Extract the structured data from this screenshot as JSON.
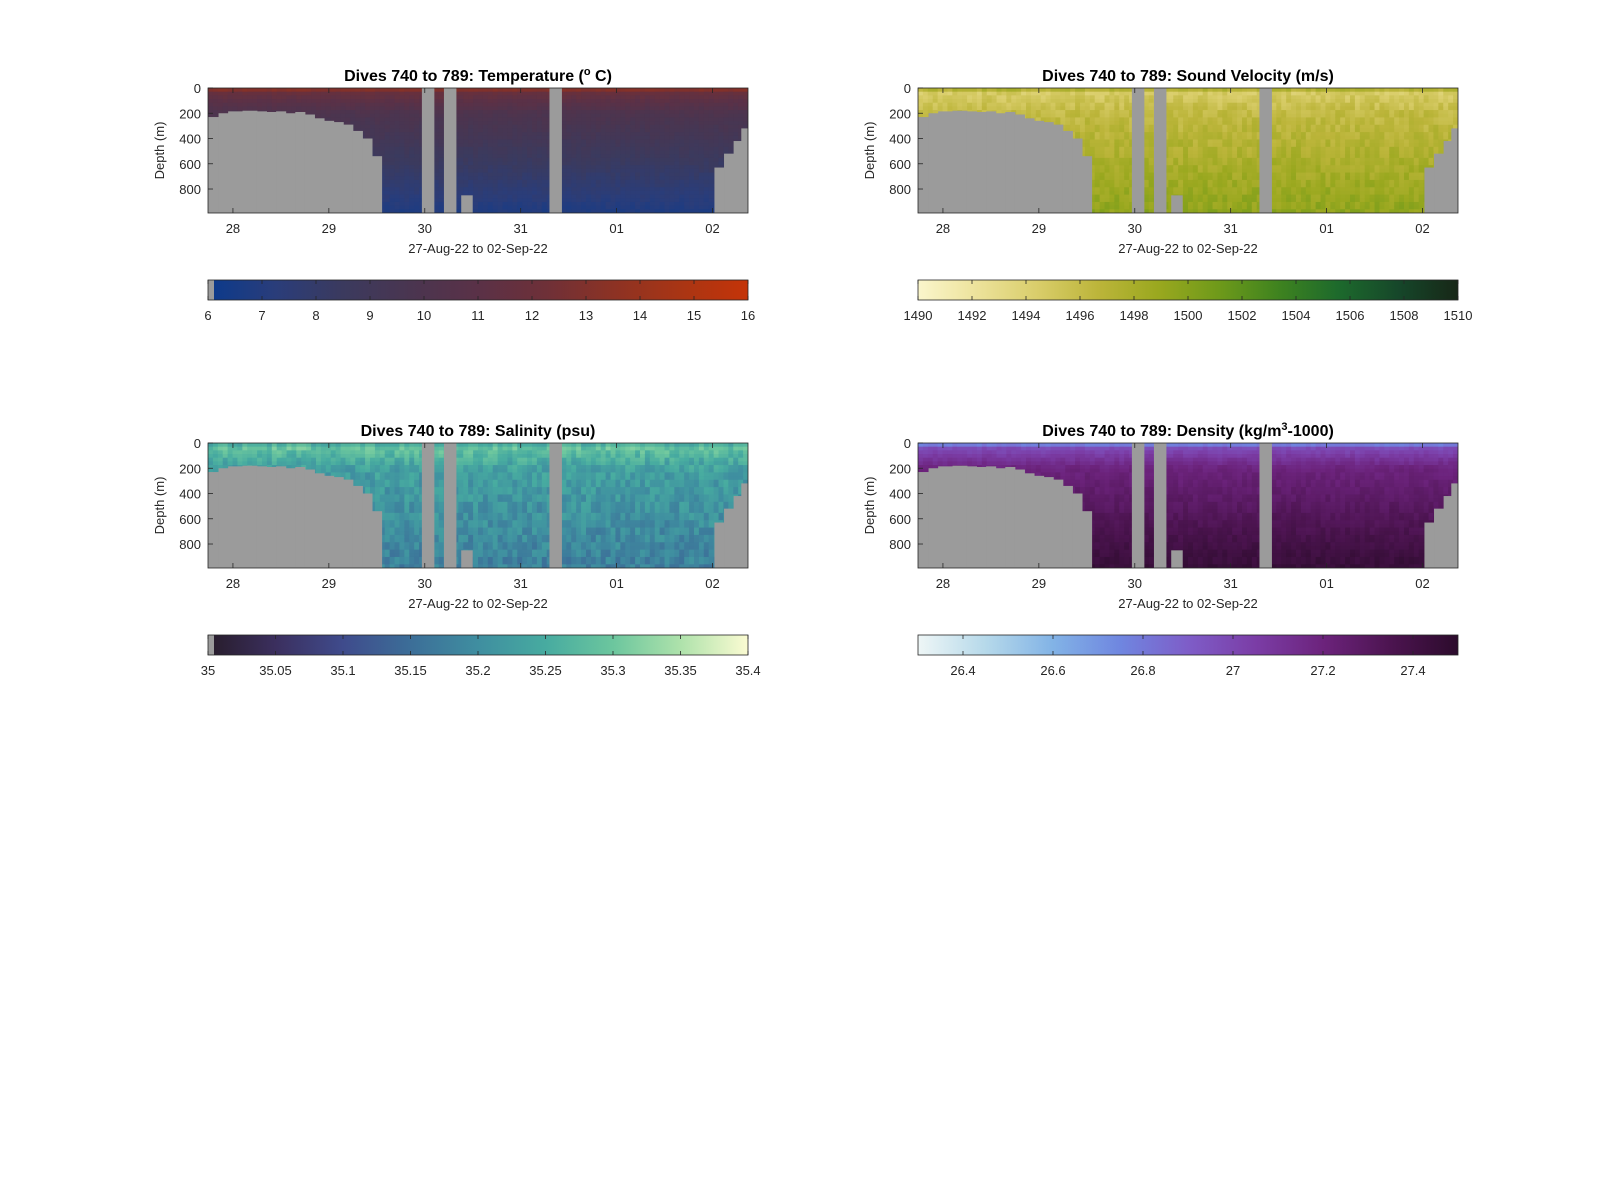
{
  "figure": {
    "background": "#ffffff",
    "axis_color": "#262626",
    "mask_color": "#9b9b9b"
  },
  "chart_data": [
    {
      "id": "temperature",
      "type": "heatmap",
      "title_parts": [
        {
          "t": "Dives 740 to 789: Temperature ("
        },
        {
          "t": "o",
          "sup": true
        },
        {
          "t": " C)"
        }
      ],
      "ylabel": "Depth (m)",
      "xlabel": "27-Aug-22 to 02-Sep-22",
      "x_tick_labels": [
        "28",
        "29",
        "30",
        "31",
        "01",
        "02"
      ],
      "x_tick_values": [
        1,
        2,
        3,
        4,
        5,
        6
      ],
      "xlim": [
        0.74,
        6.37
      ],
      "y_tick_labels": [
        "0",
        "200",
        "400",
        "600",
        "800"
      ],
      "y_tick_values": [
        0,
        200,
        400,
        600,
        800
      ],
      "ylim": [
        0,
        990
      ],
      "colorbar": {
        "range": [
          6,
          16
        ],
        "tick_values": [
          6,
          7,
          8,
          9,
          10,
          11,
          12,
          13,
          14,
          15,
          16
        ],
        "tick_labels": [
          "6",
          "7",
          "8",
          "9",
          "10",
          "11",
          "12",
          "13",
          "14",
          "15",
          "16"
        ],
        "colors": [
          "#0b3a8c",
          "#2a3d7a",
          "#3b3a5e",
          "#4a3550",
          "#5a3147",
          "#6e3038",
          "#8c3224",
          "#a93514",
          "#c43408"
        ]
      },
      "profile": {
        "surface": 16,
        "shallow": 12,
        "mid": 10,
        "deep": 6.8,
        "variability": 0.2
      },
      "colorbar_nan_swatch": true
    },
    {
      "id": "sound_velocity",
      "type": "heatmap",
      "title_parts": [
        {
          "t": "Dives 740 to 789: Sound Velocity (m/s)"
        }
      ],
      "ylabel": "Depth (m)",
      "xlabel": "27-Aug-22 to 02-Sep-22",
      "x_tick_labels": [
        "28",
        "29",
        "30",
        "31",
        "01",
        "02"
      ],
      "x_tick_values": [
        1,
        2,
        3,
        4,
        5,
        6
      ],
      "xlim": [
        0.74,
        6.37
      ],
      "y_tick_labels": [
        "0",
        "200",
        "400",
        "600",
        "800"
      ],
      "y_tick_values": [
        0,
        200,
        400,
        600,
        800
      ],
      "ylim": [
        0,
        990
      ],
      "colorbar": {
        "range": [
          1490,
          1510
        ],
        "tick_values": [
          1490,
          1492,
          1494,
          1496,
          1498,
          1500,
          1502,
          1504,
          1506,
          1508,
          1510
        ],
        "tick_labels": [
          "1490",
          "1492",
          "1494",
          "1496",
          "1498",
          "1500",
          "1502",
          "1504",
          "1506",
          "1508",
          "1510"
        ],
        "colors": [
          "#fbf6cc",
          "#ece29a",
          "#d9cd6a",
          "#bcb53a",
          "#9aa81f",
          "#6f9a1a",
          "#3f831f",
          "#1d6a2c",
          "#16472a",
          "#172717"
        ]
      },
      "profile": {
        "surface": 1504.5,
        "shallow": 1494.5,
        "mid": 1496.2,
        "deep": 1499.5,
        "variability": 0.9
      },
      "colorbar_nan_swatch": false
    },
    {
      "id": "salinity",
      "type": "heatmap",
      "title_parts": [
        {
          "t": "Dives 740 to 789: Salinity (psu)"
        }
      ],
      "ylabel": "Depth (m)",
      "xlabel": "27-Aug-22 to 02-Sep-22",
      "x_tick_labels": [
        "28",
        "29",
        "30",
        "31",
        "01",
        "02"
      ],
      "x_tick_values": [
        1,
        2,
        3,
        4,
        5,
        6
      ],
      "xlim": [
        0.74,
        6.37
      ],
      "y_tick_labels": [
        "0",
        "200",
        "400",
        "600",
        "800"
      ],
      "y_tick_values": [
        0,
        200,
        400,
        600,
        800
      ],
      "ylim": [
        0,
        990
      ],
      "colorbar": {
        "range": [
          35,
          35.4
        ],
        "tick_values": [
          35,
          35.05,
          35.1,
          35.15,
          35.2,
          35.25,
          35.3,
          35.35,
          35.4
        ],
        "tick_labels": [
          "35",
          "35.05",
          "35.1",
          "35.15",
          "35.2",
          "35.25",
          "35.3",
          "35.35",
          "35.4"
        ],
        "colors": [
          "#271c2a",
          "#3b2f5e",
          "#3f4b8c",
          "#3c6e98",
          "#3f8ea0",
          "#47aba0",
          "#6cc69e",
          "#aee2ab",
          "#fbfbd2"
        ]
      },
      "profile": {
        "surface": 35.15,
        "shallow": 35.3,
        "mid": 35.23,
        "deep": 35.18,
        "variability": 0.03
      },
      "colorbar_nan_swatch": true
    },
    {
      "id": "density",
      "type": "heatmap",
      "title_parts": [
        {
          "t": "Dives 740 to 789: Density (kg/m"
        },
        {
          "t": "3",
          "sup": true
        },
        {
          "t": "-1000)"
        }
      ],
      "ylabel": "Depth (m)",
      "xlabel": "27-Aug-22 to 02-Sep-22",
      "x_tick_labels": [
        "28",
        "29",
        "30",
        "31",
        "01",
        "02"
      ],
      "x_tick_values": [
        1,
        2,
        3,
        4,
        5,
        6
      ],
      "xlim": [
        0.74,
        6.37
      ],
      "y_tick_labels": [
        "0",
        "200",
        "400",
        "600",
        "800"
      ],
      "y_tick_values": [
        0,
        200,
        400,
        600,
        800
      ],
      "ylim": [
        0,
        990
      ],
      "colorbar": {
        "range": [
          26.3,
          27.5
        ],
        "tick_values": [
          26.4,
          26.6,
          26.8,
          27,
          27.2,
          27.4
        ],
        "tick_labels": [
          "26.4",
          "26.6",
          "26.8",
          "27",
          "27.2",
          "27.4"
        ],
        "colors": [
          "#eef6f6",
          "#b6d9ea",
          "#82b3e6",
          "#6f86e0",
          "#7e5dc8",
          "#7b3da6",
          "#6c237c",
          "#4c1450",
          "#2c0b2c"
        ]
      },
      "profile": {
        "surface": 26.35,
        "shallow": 26.95,
        "mid": 27.2,
        "deep": 27.45,
        "variability": 0.03
      },
      "colorbar_nan_swatch": false
    }
  ],
  "shared_masks": {
    "gap_days": [
      [
        2.97,
        3.1
      ],
      [
        3.2,
        3.33
      ],
      [
        4.3,
        4.43
      ]
    ],
    "bottom_left": [
      [
        0.74,
        230
      ],
      [
        0.85,
        200
      ],
      [
        0.95,
        185
      ],
      [
        1.1,
        180
      ],
      [
        1.25,
        185
      ],
      [
        1.35,
        190
      ],
      [
        1.45,
        185
      ],
      [
        1.55,
        200
      ],
      [
        1.65,
        190
      ],
      [
        1.75,
        210
      ],
      [
        1.85,
        240
      ],
      [
        1.95,
        260
      ],
      [
        2.05,
        270
      ],
      [
        2.15,
        290
      ],
      [
        2.25,
        340
      ],
      [
        2.35,
        400
      ],
      [
        2.45,
        540
      ],
      [
        2.55,
        540
      ]
    ],
    "bottom_right": [
      [
        6.02,
        630
      ],
      [
        6.12,
        520
      ],
      [
        6.22,
        420
      ],
      [
        6.3,
        320
      ],
      [
        6.37,
        320
      ]
    ],
    "seamount": [
      [
        3.38,
        3.5,
        850
      ]
    ]
  }
}
